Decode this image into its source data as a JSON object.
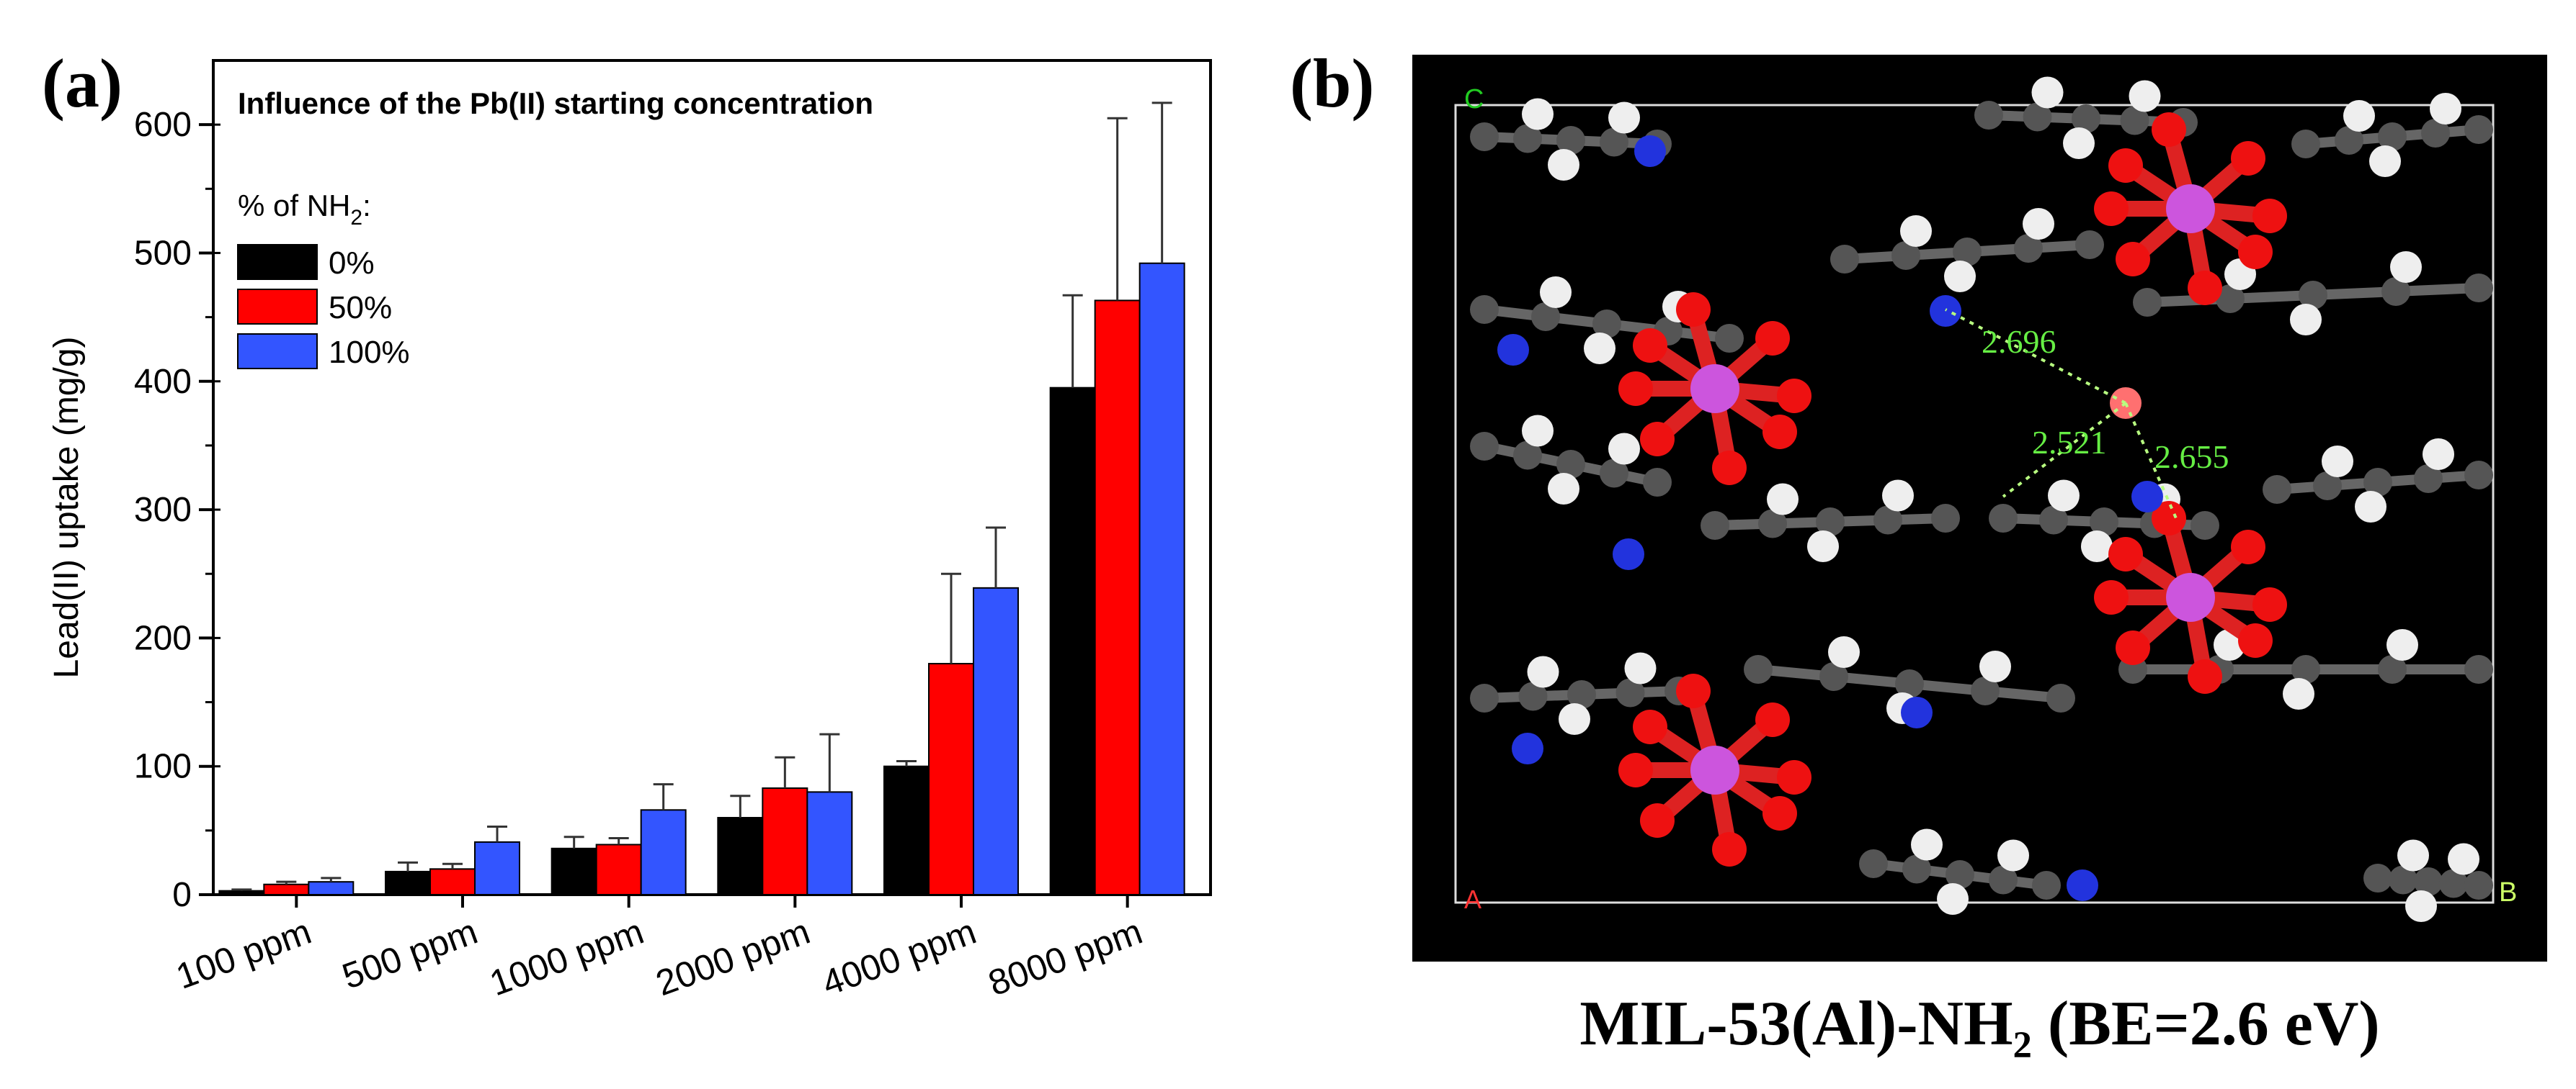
{
  "panel_a_label": "(a)",
  "panel_b_label": "(b)",
  "chart_data": {
    "type": "bar",
    "title": "Influence of the Pb(II) starting concentration",
    "legend_title": "% of NH",
    "legend_title_subscript": "2",
    "legend_title_suffix": ":",
    "legend_position": "top-left",
    "ylabel": "Lead(II) uptake (mg/g)",
    "xlabel": "",
    "ylim": [
      0,
      650
    ],
    "yticks": [
      0,
      100,
      200,
      300,
      400,
      500,
      600
    ],
    "categories": [
      "100 ppm",
      "500 ppm",
      "1000 ppm",
      "2000 ppm",
      "4000 ppm",
      "8000 ppm"
    ],
    "series": [
      {
        "name": "0%",
        "color": "#000000",
        "values": [
          3,
          18,
          36,
          60,
          100,
          395
        ],
        "errors": [
          1,
          7,
          9,
          17,
          4,
          72
        ]
      },
      {
        "name": "50%",
        "color": "#ff0000",
        "values": [
          8,
          20,
          39,
          83,
          180,
          463
        ],
        "errors": [
          2,
          4,
          5,
          24,
          70,
          142
        ]
      },
      {
        "name": "100%",
        "color": "#3355ff",
        "values": [
          10,
          41,
          66,
          80,
          239,
          492
        ],
        "errors": [
          3,
          12,
          20,
          45,
          47,
          125
        ]
      }
    ]
  },
  "structure": {
    "axis_c": "C",
    "axis_a": "A",
    "axis_b": "B",
    "distances": [
      "2.696",
      "2.521",
      "2.655"
    ],
    "caption": "MIL-53(Al)-NH₂ (BE=2.6 eV)"
  }
}
